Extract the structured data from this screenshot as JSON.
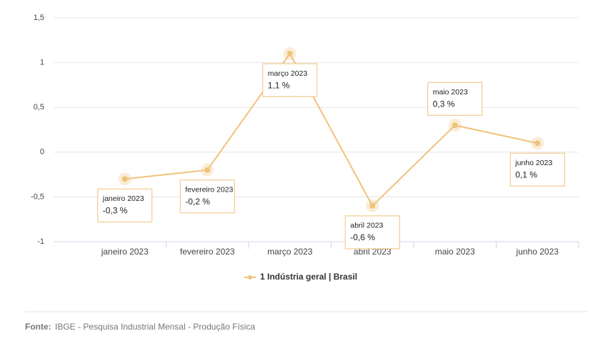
{
  "chart_data": {
    "type": "line",
    "categories": [
      "janeiro 2023",
      "fevereiro 2023",
      "março 2023",
      "abril 2023",
      "maio 2023",
      "junho 2023"
    ],
    "series": [
      {
        "name": "1 Indústria geral | Brasil",
        "color": "#f0c27b",
        "values": [
          -0.3,
          -0.2,
          1.1,
          -0.6,
          0.3,
          0.1
        ],
        "value_labels": [
          "-0,3 %",
          "-0,2 %",
          "1,1 %",
          "-0,6 %",
          "0,3 %",
          "0,1 %"
        ]
      }
    ],
    "ylim": [
      -1,
      1.5
    ],
    "yticks": [
      {
        "value": -1,
        "label": "-1"
      },
      {
        "value": -0.5,
        "label": "-0,5"
      },
      0,
      {
        "value": 0.5,
        "label": "0,5"
      },
      1,
      {
        "value": 1.5,
        "label": "1,5"
      }
    ],
    "grid": true,
    "legend": "bottom"
  },
  "footer": {
    "label": "Fonte:",
    "text": "IBGE - Pesquisa Industrial Mensal - Produção Física"
  }
}
